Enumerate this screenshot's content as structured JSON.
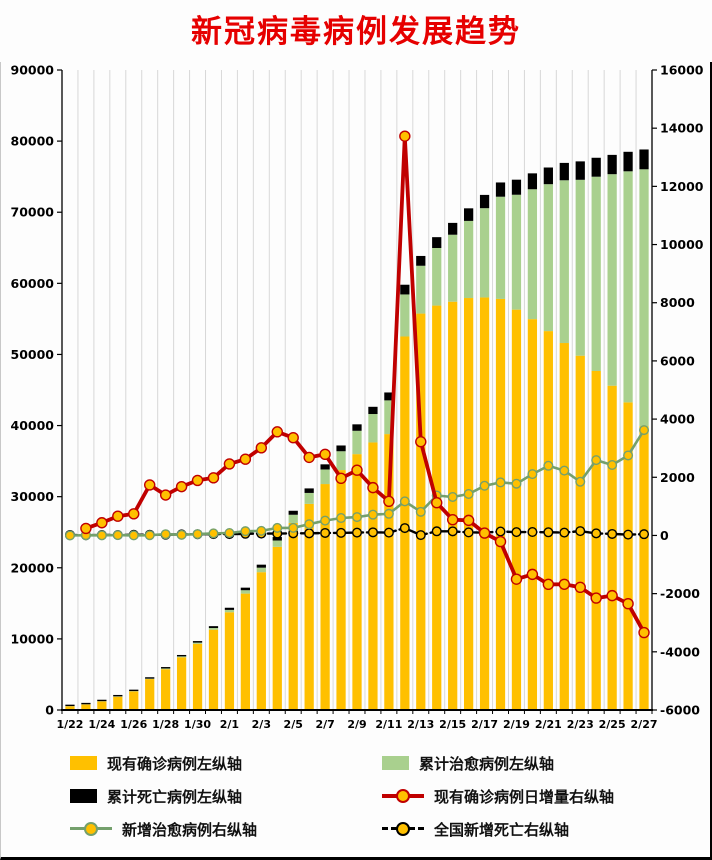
{
  "title": "新冠病毒病例发展趋势",
  "colors": {
    "title": "#e60000",
    "gridline": "#d8d8d8",
    "axis": "#000000"
  },
  "chart_data": {
    "type": "combo-stacked-bar-line",
    "title": "新冠病毒病例发展趋势",
    "grid": "vertical",
    "legend_position": "bottom",
    "x_tick_every": 2,
    "categories": [
      "1/22",
      "1/23",
      "1/24",
      "1/25",
      "1/26",
      "1/27",
      "1/28",
      "1/29",
      "1/30",
      "1/31",
      "2/1",
      "2/2",
      "2/3",
      "2/4",
      "2/5",
      "2/6",
      "2/7",
      "2/8",
      "2/9",
      "2/10",
      "2/11",
      "2/12",
      "2/13",
      "2/14",
      "2/15",
      "2/16",
      "2/17",
      "2/18",
      "2/19",
      "2/20",
      "2/21",
      "2/22",
      "2/23",
      "2/24",
      "2/25",
      "2/26",
      "2/27"
    ],
    "left_axis": {
      "min": 0,
      "max": 90000,
      "step": 10000
    },
    "right_axis": {
      "min": -6000,
      "max": 16000,
      "step": 2000
    },
    "bar_series": [
      {
        "name": "现有确诊病例左纵轴",
        "axis": "left",
        "color": "#FFC000",
        "values": [
          529,
          771,
          1208,
          1870,
          2613,
          4349,
          5739,
          7417,
          9308,
          11289,
          13748,
          16369,
          19381,
          22942,
          26302,
          28985,
          31774,
          33738,
          35982,
          37626,
          38800,
          52526,
          55748,
          56873,
          57416,
          57934,
          58016,
          57805,
          56303,
          54965,
          53284,
          51606,
          49824,
          47672,
          45604,
          43258,
          39919
        ]
      },
      {
        "name": "累计治愈病例左纵轴",
        "axis": "left",
        "color": "#A9D08E",
        "values": [
          25,
          34,
          38,
          49,
          51,
          60,
          103,
          124,
          171,
          243,
          328,
          475,
          632,
          892,
          1153,
          1540,
          2050,
          2649,
          3281,
          3996,
          4740,
          5911,
          6723,
          8096,
          9419,
          10844,
          12552,
          14376,
          16155,
          18264,
          20659,
          22888,
          24734,
          27323,
          29745,
          32495,
          36117
        ]
      },
      {
        "name": "累计死亡病例左纵轴",
        "axis": "left",
        "color": "#000000",
        "values": [
          17,
          25,
          41,
          56,
          80,
          106,
          132,
          170,
          213,
          259,
          304,
          361,
          425,
          490,
          563,
          636,
          722,
          811,
          908,
          1016,
          1113,
          1367,
          1380,
          1523,
          1665,
          1770,
          1868,
          2004,
          2118,
          2236,
          2345,
          2442,
          2592,
          2663,
          2715,
          2744,
          2788
        ]
      }
    ],
    "line_series": [
      {
        "name": "现有确诊病例日增量右纵轴",
        "axis": "right",
        "color": "#C00000",
        "dash": "solid",
        "width": 3.8,
        "marker": "#FFC000",
        "marker_size": 5,
        "values": [
          null,
          242,
          437,
          662,
          743,
          1736,
          1390,
          1678,
          1891,
          1981,
          2459,
          2621,
          3012,
          3561,
          3360,
          2683,
          2789,
          1964,
          2244,
          1644,
          1174,
          13726,
          3222,
          1125,
          543,
          518,
          82,
          -211,
          -1502,
          -1338,
          -1681,
          -1678,
          -1782,
          -2152,
          -2068,
          -2346,
          -3339
        ]
      },
      {
        "name": "新增治愈病例右纵轴",
        "axis": "right",
        "color": "#74A06C",
        "dash": "solid",
        "width": 2.6,
        "marker": "#FFC000",
        "marker_size": 4.3,
        "values": [
          0,
          9,
          4,
          11,
          2,
          9,
          43,
          21,
          47,
          72,
          85,
          147,
          157,
          260,
          261,
          387,
          510,
          599,
          632,
          715,
          744,
          1171,
          812,
          1373,
          1323,
          1425,
          1708,
          1824,
          1779,
          2109,
          2395,
          2229,
          1846,
          2589,
          2422,
          2750,
          3622
        ]
      },
      {
        "name": "全国新增死亡右纵轴",
        "axis": "right",
        "color": "#000000",
        "dash": "dashed",
        "width": 2.4,
        "marker": "#FFC000",
        "marker_size": 4.3,
        "values": [
          17,
          8,
          16,
          15,
          24,
          26,
          26,
          38,
          43,
          46,
          45,
          57,
          64,
          65,
          73,
          73,
          86,
          89,
          97,
          108,
          97,
          254,
          13,
          143,
          142,
          105,
          98,
          136,
          114,
          118,
          109,
          97,
          150,
          71,
          52,
          29,
          44
        ]
      }
    ]
  }
}
